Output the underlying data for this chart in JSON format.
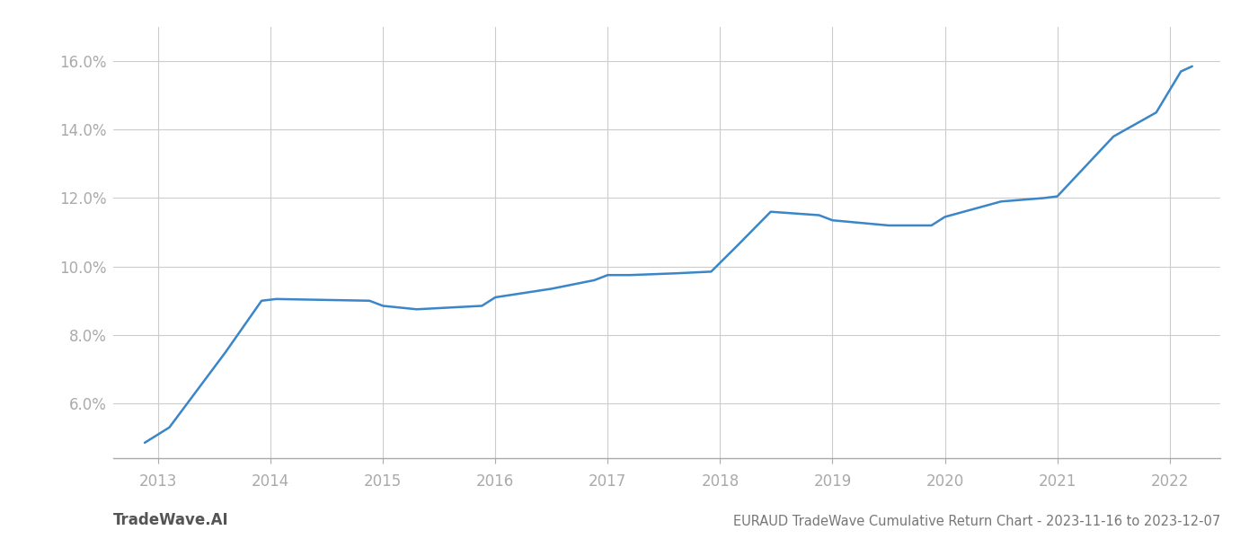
{
  "x_values": [
    2012.88,
    2013.1,
    2013.6,
    2013.92,
    2014.05,
    2014.88,
    2015.0,
    2015.3,
    2015.88,
    2016.0,
    2016.5,
    2016.88,
    2017.0,
    2017.2,
    2017.6,
    2017.92,
    2018.15,
    2018.45,
    2018.88,
    2019.0,
    2019.5,
    2019.88,
    2020.0,
    2020.5,
    2020.88,
    2021.0,
    2021.5,
    2021.88,
    2022.1,
    2022.2
  ],
  "y_values": [
    4.85,
    5.3,
    7.5,
    9.0,
    9.05,
    9.0,
    8.85,
    8.75,
    8.85,
    9.1,
    9.35,
    9.6,
    9.75,
    9.75,
    9.8,
    9.85,
    10.6,
    11.6,
    11.5,
    11.35,
    11.2,
    11.2,
    11.45,
    11.9,
    12.0,
    12.05,
    13.8,
    14.5,
    15.7,
    15.85
  ],
  "line_color": "#3a86c8",
  "line_width": 1.8,
  "xlim": [
    2012.6,
    2022.45
  ],
  "ylim": [
    4.4,
    17.0
  ],
  "yticks": [
    6.0,
    8.0,
    10.0,
    12.0,
    14.0,
    16.0
  ],
  "xticks": [
    2013,
    2014,
    2015,
    2016,
    2017,
    2018,
    2019,
    2020,
    2021,
    2022
  ],
  "background_color": "#ffffff",
  "grid_color": "#cccccc",
  "tick_color": "#aaaaaa",
  "watermark_left": "TradeWave.AI",
  "watermark_right": "EURAUD TradeWave Cumulative Return Chart - 2023-11-16 to 2023-12-07"
}
